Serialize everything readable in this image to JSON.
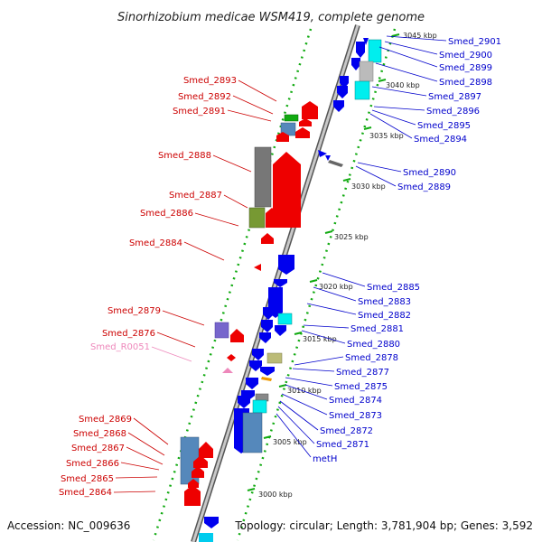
{
  "title": "Sinorhizobium medicae WSM419, complete genome",
  "footer": {
    "accession": "Accession: NC_009636",
    "summary": "Topology: circular; Length: 3,781,904 bp; Genes: 3,592"
  },
  "colors": {
    "forward_strand": "#ff0000",
    "reverse_strand": "#0000ee",
    "left_label": "#cc0000",
    "right_label": "#0000cc",
    "rna_label": "#ee88bb",
    "backbone": "#888888",
    "tick": "#11aa11"
  },
  "kbp_ticks": [
    "3045 kbp",
    "3040 kbp",
    "3035 kbp",
    "3030 kbp",
    "3025 kbp",
    "3020 kbp",
    "3015 kbp",
    "3010 kbp",
    "3005 kbp",
    "3000 kbp"
  ],
  "right_labels": [
    "Smed_2901",
    "Smed_2900",
    "Smed_2899",
    "Smed_2898",
    "Smed_2897",
    "Smed_2896",
    "Smed_2895",
    "Smed_2894",
    "Smed_2890",
    "Smed_2889",
    "Smed_2885",
    "Smed_2883",
    "Smed_2882",
    "Smed_2881",
    "Smed_2880",
    "Smed_2878",
    "Smed_2877",
    "Smed_2875",
    "Smed_2874",
    "Smed_2873",
    "Smed_2872",
    "Smed_2871",
    "metH"
  ],
  "left_labels": [
    "Smed_2893",
    "Smed_2892",
    "Smed_2891",
    "Smed_2888",
    "Smed_2887",
    "Smed_2886",
    "Smed_2884",
    "Smed_2879",
    "Smed_2876",
    "Smed_R0051",
    "Smed_2869",
    "Smed_2868",
    "Smed_2867",
    "Smed_2866",
    "Smed_2865",
    "Smed_2864"
  ]
}
